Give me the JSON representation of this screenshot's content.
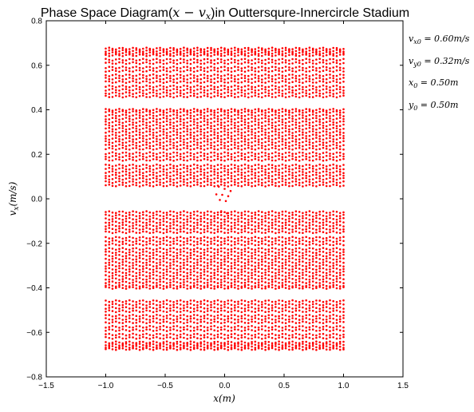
{
  "chart_data": {
    "type": "scatter",
    "title": "Phase Space Diagram(x − v_x)in Outtersqure-Innercircle Stadium",
    "xlabel": "x(m)",
    "ylabel": "v_x(m/s)",
    "xlim": [
      -1.5,
      1.5
    ],
    "ylim": [
      -0.8,
      0.8
    ],
    "xticks": [
      "−1.5",
      "−1.0",
      "−0.5",
      "0.0",
      "0.5",
      "1.0",
      "1.5"
    ],
    "yticks": [
      "−0.8",
      "−0.6",
      "−0.4",
      "−0.2",
      "0.0",
      "0.2",
      "0.4",
      "0.6",
      "0.8"
    ],
    "grid": false,
    "marker_color": "#ff0000",
    "x_range": [
      -1.0,
      1.0
    ],
    "velocity_levels": [
      0.675,
      0.665,
      0.655,
      0.645,
      0.625,
      0.61,
      0.59,
      0.575,
      0.555,
      0.54,
      0.525,
      0.505,
      0.49,
      0.475,
      0.46,
      0.4,
      0.39,
      0.375,
      0.36,
      0.345,
      0.33,
      0.315,
      0.3,
      0.285,
      0.27,
      0.255,
      0.24,
      0.225,
      0.205,
      0.19,
      0.175,
      0.15,
      0.135,
      0.12,
      0.105,
      0.09,
      0.075,
      0.06
    ],
    "annotations": [
      "v_x0 = 0.60m/s",
      "v_y0 = 0.32m/s",
      "x_0 = 0.50m",
      "y_0 = 0.50m"
    ]
  }
}
